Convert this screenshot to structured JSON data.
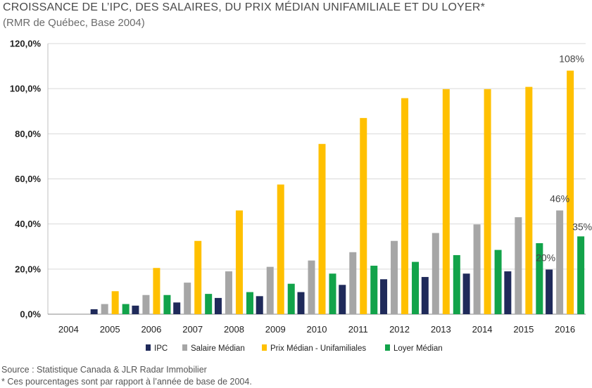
{
  "header": {
    "title": "CROISSANCE DE L’IPC, DES SALAIRES, DU PRIX MÉDIAN UNIFAMILIALE ET DU LOYER*",
    "subtitle": "(RMR de Québec, Base 2004)"
  },
  "footer": {
    "source": "Source : Statistique Canada & JLR Radar Immobilier",
    "note": "* Ces pourcentages sont par rapport à l’année de base de 2004."
  },
  "chart_data": {
    "type": "bar",
    "categories": [
      "2004",
      "2005",
      "2006",
      "2007",
      "2008",
      "2009",
      "2010",
      "2011",
      "2012",
      "2013",
      "2014",
      "2015",
      "2016"
    ],
    "ylim": [
      0,
      120
    ],
    "yticks": [
      "0,0%",
      "20,0%",
      "40,0%",
      "60,0%",
      "80,0%",
      "100,0%",
      "120,0%"
    ],
    "ytick_values": [
      0,
      20,
      40,
      60,
      80,
      100,
      120
    ],
    "grid": true,
    "legend_position": "bottom",
    "series": [
      {
        "name": "IPC",
        "color": "#1f2a5a",
        "values": [
          0,
          2.2,
          3.8,
          5.2,
          7.2,
          8.0,
          9.8,
          13.0,
          15.5,
          16.5,
          18.0,
          19.0,
          19.8
        ]
      },
      {
        "name": "Salaire Médian",
        "color": "#a6a6a6",
        "values": [
          0,
          4.5,
          8.5,
          14.0,
          19.0,
          21.0,
          23.8,
          27.5,
          32.5,
          36.0,
          39.8,
          43.0,
          46.0
        ]
      },
      {
        "name": "Prix Médian - Unifamiliales",
        "color": "#ffc000",
        "values": [
          0,
          10.2,
          20.5,
          32.5,
          46.0,
          57.5,
          75.5,
          87.0,
          95.8,
          99.8,
          99.8,
          100.8,
          108.0
        ]
      },
      {
        "name": "Loyer Médian",
        "color": "#12a34a",
        "values": [
          0,
          4.5,
          8.5,
          9.0,
          9.8,
          13.5,
          18.0,
          21.5,
          23.2,
          26.2,
          28.5,
          31.5,
          34.5
        ]
      }
    ],
    "annotations": [
      {
        "text": "108%",
        "category": "2016",
        "series": "Prix Médian - Unifamiliales"
      },
      {
        "text": "46%",
        "category": "2016",
        "series": "Salaire Médian"
      },
      {
        "text": "35%",
        "category": "2016",
        "series": "Loyer Médian"
      },
      {
        "text": "20%",
        "category": "2016",
        "series": "IPC"
      }
    ]
  }
}
